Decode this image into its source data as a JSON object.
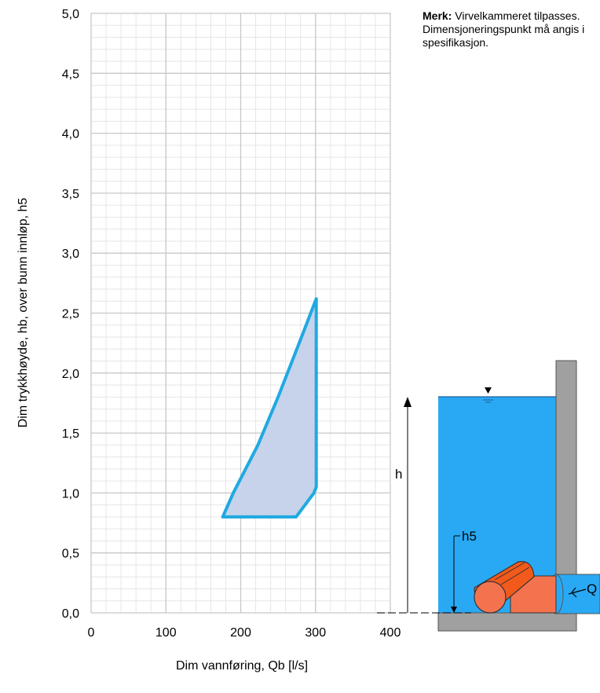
{
  "note": {
    "label": "Merk:",
    "text": "Virvelkammeret tilpasses. Dimensjoneringspunkt må angis i spesifikasjon."
  },
  "chart_data": {
    "type": "area",
    "xlabel": "Dim vannføring, Qb [l/s]",
    "ylabel": "Dim trykkhøyde, hb, over bunn innløp, h5",
    "xlim": [
      0,
      400
    ],
    "ylim": [
      0,
      5.0
    ],
    "x_ticks": [
      "0",
      "100",
      "200",
      "300",
      "400"
    ],
    "y_ticks": [
      "0,0",
      "0,5",
      "1,0",
      "1,5",
      "2,0",
      "2,5",
      "3,0",
      "3,5",
      "4,0",
      "4,5",
      "5,0"
    ],
    "grid": true,
    "series": [
      {
        "points": [
          {
            "x": 176,
            "y": 0.8
          },
          {
            "x": 274,
            "y": 0.8
          },
          {
            "x": 298,
            "y": 1.0
          },
          {
            "x": 301,
            "y": 1.05
          },
          {
            "x": 301,
            "y": 2.62
          },
          {
            "x": 280,
            "y": 2.28
          },
          {
            "x": 250,
            "y": 1.8
          },
          {
            "x": 223,
            "y": 1.4
          },
          {
            "x": 200,
            "y": 1.12
          },
          {
            "x": 190,
            "y": 1.0
          },
          {
            "x": 176,
            "y": 0.8
          }
        ],
        "color": "#1fa9e1",
        "fill": "#c6d3ea"
      }
    ]
  },
  "diagram": {
    "labels": {
      "h": "h",
      "h5": "h5",
      "q": "Q"
    },
    "colors": {
      "water": "#29a9f4",
      "wall": "#a0a0a0",
      "pipe": "#f4734f",
      "chamber": "#f25a1b"
    }
  }
}
